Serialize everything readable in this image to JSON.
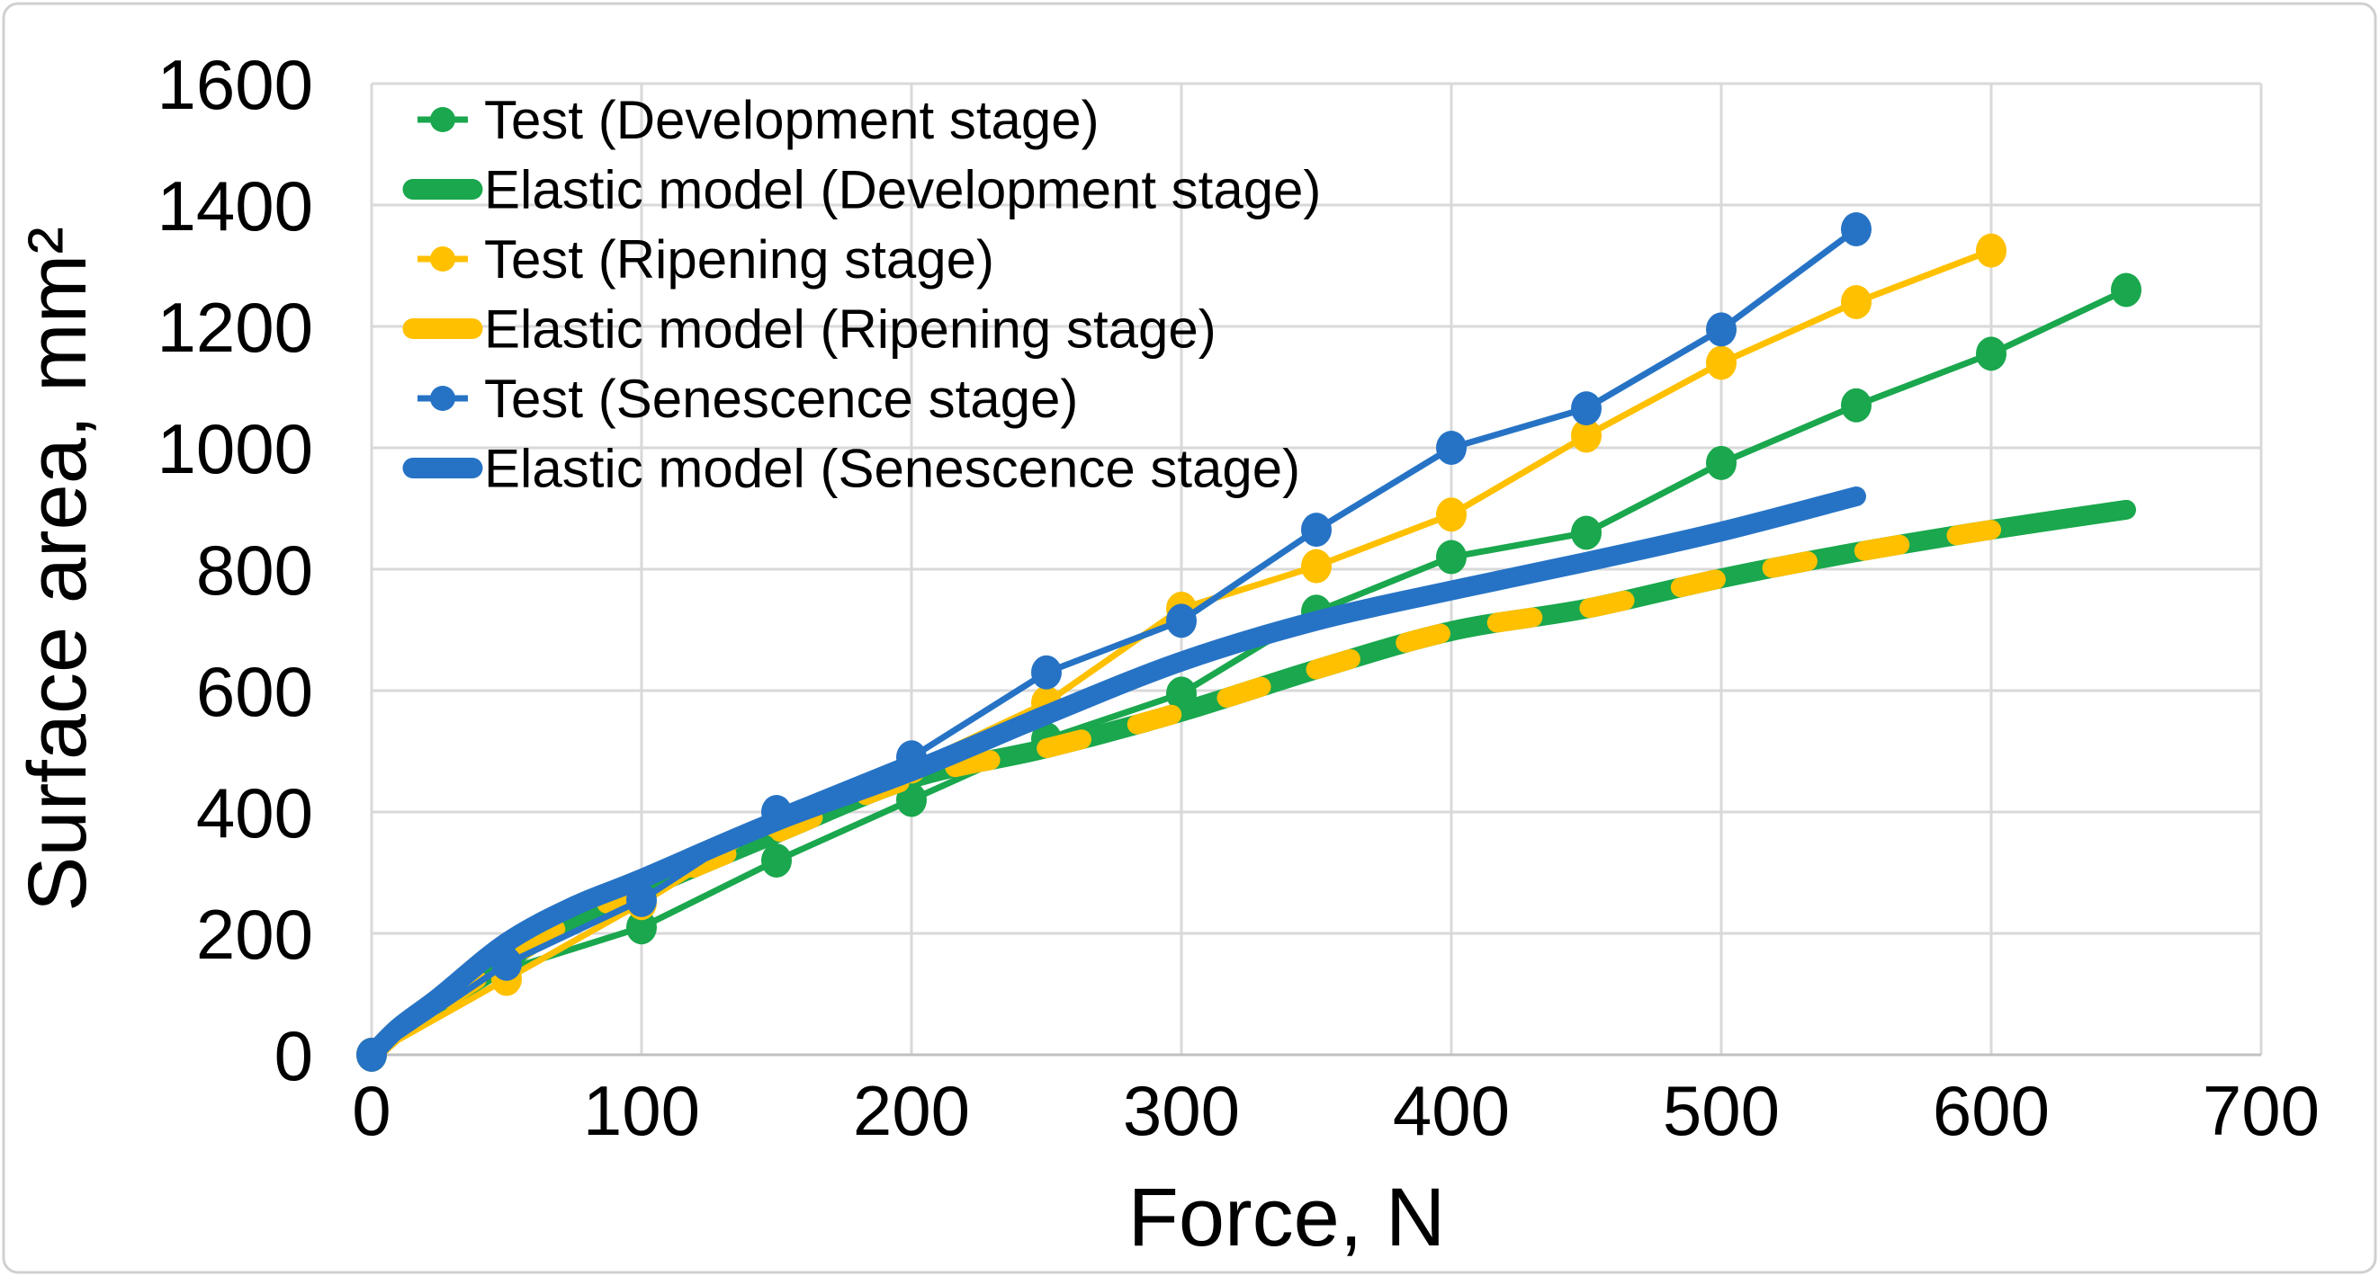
{
  "chart_data": {
    "type": "line",
    "title": "",
    "xlabel": "Force, N",
    "ylabel": "Surface area, mm²",
    "xlim": [
      0,
      700
    ],
    "ylim": [
      0,
      1600
    ],
    "xticks": [
      0,
      100,
      200,
      300,
      400,
      500,
      600,
      700
    ],
    "yticks": [
      0,
      200,
      400,
      600,
      800,
      1000,
      1200,
      1400,
      1600
    ],
    "grid": true,
    "legend_position": "top-left-inside",
    "colors": {
      "development_green": "#1AA74D",
      "ripening_yellow": "#FFC000",
      "senescence_blue": "#2673C5",
      "gridline": "#D9D9D9",
      "axis_line": "#C0C0C0",
      "text": "#000000",
      "figure_border": "#D0D0D0",
      "background": "#FFFFFF"
    },
    "series": [
      {
        "name": "Test (Development stage)",
        "legend_swatch": "marker-line",
        "style": "thin-marker",
        "color_key": "development_green",
        "x": [
          0,
          50,
          100,
          150,
          200,
          250,
          300,
          350,
          400,
          450,
          500,
          550,
          600,
          650
        ],
        "y": [
          0,
          140,
          210,
          320,
          420,
          520,
          595,
          730,
          820,
          860,
          975,
          1070,
          1155,
          1260
        ]
      },
      {
        "name": "Elastic model (Development stage)",
        "legend_swatch": "thick-segment",
        "style": "thick",
        "color_key": "development_green",
        "x": [
          0,
          10,
          25,
          50,
          75,
          100,
          150,
          200,
          250,
          300,
          350,
          400,
          450,
          500,
          550,
          600,
          650
        ],
        "y": [
          0,
          40,
          85,
          155,
          225,
          272,
          365,
          455,
          505,
          565,
          635,
          698,
          735,
          785,
          828,
          865,
          898
        ]
      },
      {
        "name": "Test (Ripening stage)",
        "legend_swatch": "marker-line",
        "style": "thin-marker",
        "color_key": "ripening_yellow",
        "x": [
          0,
          50,
          100,
          150,
          200,
          250,
          300,
          350,
          400,
          450,
          500,
          550,
          600
        ],
        "y": [
          0,
          125,
          250,
          385,
          475,
          580,
          735,
          805,
          890,
          1020,
          1140,
          1240,
          1325
        ]
      },
      {
        "name": "Elastic model (Ripening stage)",
        "legend_swatch": "thick-segment",
        "style": "thick-dashed",
        "color_key": "ripening_yellow",
        "x": [
          0,
          10,
          25,
          50,
          75,
          100,
          150,
          200,
          250,
          300,
          350,
          400,
          450,
          500,
          550,
          600
        ],
        "y": [
          0,
          40,
          85,
          155,
          225,
          272,
          365,
          455,
          505,
          565,
          635,
          698,
          735,
          785,
          828,
          865
        ]
      },
      {
        "name": "Test (Senescence stage)",
        "legend_swatch": "marker-line",
        "style": "thin-marker",
        "color_key": "senescence_blue",
        "x": [
          0,
          50,
          100,
          150,
          200,
          250,
          300,
          350,
          400,
          450,
          500,
          550
        ],
        "y": [
          0,
          150,
          255,
          400,
          490,
          630,
          715,
          865,
          1000,
          1065,
          1195,
          1360
        ]
      },
      {
        "name": "Elastic model (Senescence stage)",
        "legend_swatch": "thick-segment",
        "style": "thick",
        "color_key": "senescence_blue",
        "x": [
          0,
          10,
          25,
          50,
          75,
          100,
          150,
          200,
          250,
          300,
          350,
          400,
          450,
          500,
          550
        ],
        "y": [
          0,
          45,
          95,
          185,
          245,
          290,
          385,
          467,
          560,
          648,
          715,
          765,
          812,
          862,
          920
        ]
      }
    ]
  }
}
